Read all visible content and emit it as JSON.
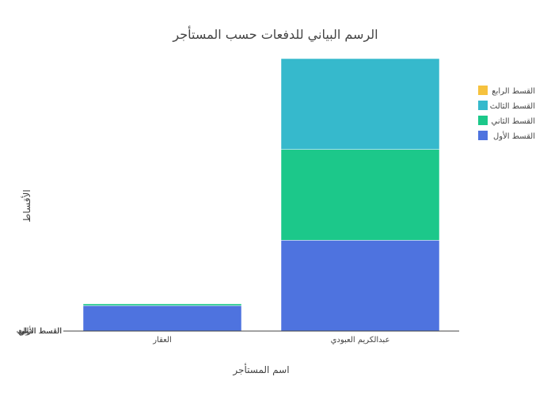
{
  "chart_data": {
    "type": "bar",
    "stacked": true,
    "title": "الرسم البياني للدفعات حسب المستأجر",
    "xlabel": "اسم المستأجر",
    "ylabel": "الأقساط",
    "categories": [
      "العقار",
      "عبدالكريم العبودي"
    ],
    "ylim": [
      0,
      3
    ],
    "grid": false,
    "legend_position": "top-right",
    "series": [
      {
        "name": "القسط الأول",
        "color": "#4e73df",
        "values": [
          0.28,
          1.0
        ]
      },
      {
        "name": "القسط الثاني",
        "color": "#1cc88a",
        "values": [
          0.02,
          1.0
        ]
      },
      {
        "name": "القسط الثالث",
        "color": "#36b9cc",
        "values": [
          0,
          1.0
        ]
      },
      {
        "name": "القسط الرابع",
        "color": "#f6c23e",
        "values": [
          0,
          0
        ]
      }
    ],
    "y_tick_labels": [
      "القسط الأول",
      "القسط الثاني",
      "القسط الثالث",
      "القسط الرابع"
    ]
  }
}
